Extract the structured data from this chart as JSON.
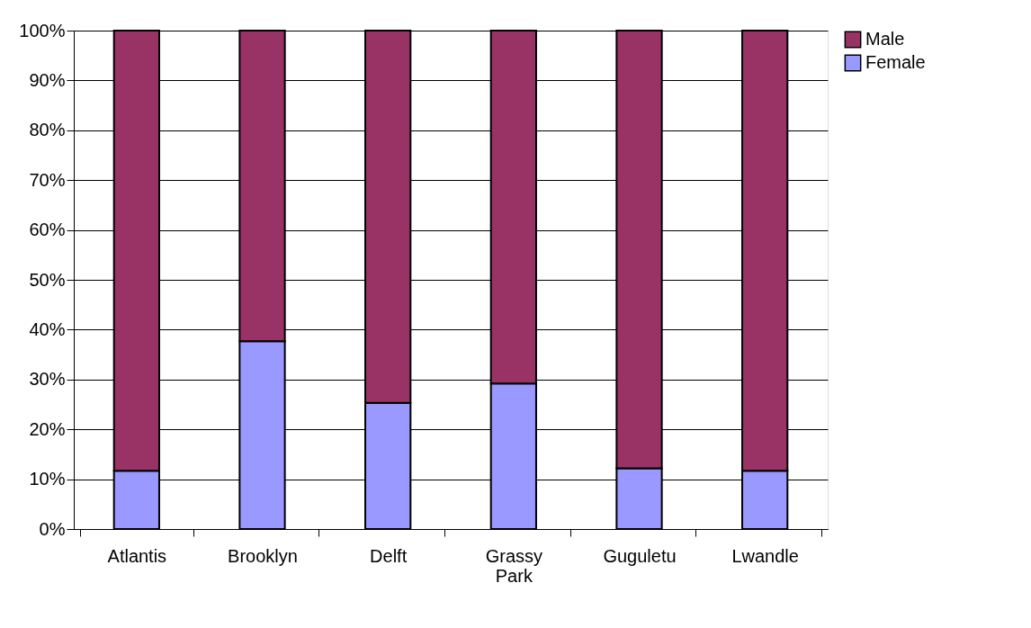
{
  "chart_data": {
    "type": "bar",
    "stacked": true,
    "categories": [
      "Atlantis",
      "Brooklyn",
      "Delft",
      "Grassy Park",
      "Guguletu",
      "Lwandle"
    ],
    "series": [
      {
        "name": "Female",
        "color": "#9999ff",
        "values": [
          11.7,
          37.7,
          25.3,
          29.2,
          12.2,
          11.7
        ]
      },
      {
        "name": "Male",
        "color": "#993366",
        "values": [
          88.3,
          62.3,
          74.7,
          70.8,
          87.8,
          88.3
        ]
      }
    ],
    "ylim": [
      0,
      100
    ],
    "yticks": [
      {
        "value": 0,
        "label": "0%"
      },
      {
        "value": 10,
        "label": "10%"
      },
      {
        "value": 20,
        "label": "20%"
      },
      {
        "value": 30,
        "label": "30%"
      },
      {
        "value": 40,
        "label": "40%"
      },
      {
        "value": 50,
        "label": "50%"
      },
      {
        "value": 60,
        "label": "60%"
      },
      {
        "value": 70,
        "label": "70%"
      },
      {
        "value": 80,
        "label": "80%"
      },
      {
        "value": 90,
        "label": "90%"
      },
      {
        "value": 100,
        "label": "100%"
      }
    ],
    "grid": "y",
    "legend": "right"
  }
}
